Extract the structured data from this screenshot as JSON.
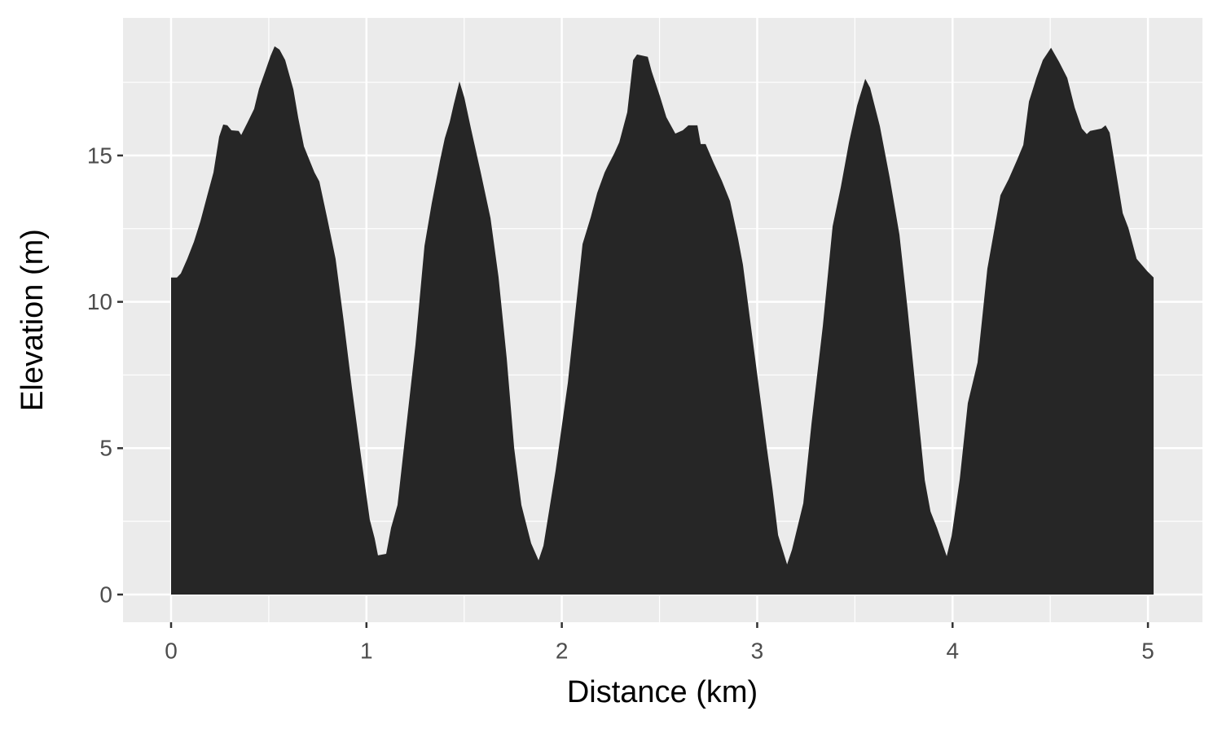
{
  "chart_data": {
    "type": "area",
    "x_label": "Distance (km)",
    "y_label": "Elevation (m)",
    "color": "#262626",
    "background": "#ebebeb",
    "grid": true,
    "xlim": [
      -0.246,
      5.279
    ],
    "ylim": [
      -0.946,
      19.7
    ],
    "xticks": [
      0,
      1,
      2,
      3,
      4,
      5
    ],
    "yticks": [
      0,
      5,
      10,
      15
    ],
    "xminorticks": [
      0.5,
      1.5,
      2.5,
      3.5,
      4.5
    ],
    "yminorticks": [
      2.5,
      7.5,
      12.5,
      17.5
    ],
    "x": [
      0,
      0.03,
      0.05,
      0.083,
      0.117,
      0.15,
      0.183,
      0.217,
      0.246,
      0.267,
      0.288,
      0.309,
      0.346,
      0.359,
      0.392,
      0.425,
      0.45,
      0.484,
      0.509,
      0.53,
      0.555,
      0.584,
      0.626,
      0.651,
      0.68,
      0.709,
      0.734,
      0.759,
      0.801,
      0.842,
      0.884,
      0.926,
      0.972,
      1.017,
      1.042,
      1.059,
      1.101,
      1.126,
      1.159,
      1.201,
      1.251,
      1.297,
      1.334,
      1.376,
      1.401,
      1.426,
      1.447,
      1.476,
      1.501,
      1.535,
      1.585,
      1.635,
      1.676,
      1.718,
      1.756,
      1.793,
      1.843,
      1.881,
      1.906,
      1.968,
      2.031,
      2.106,
      2.148,
      2.181,
      2.219,
      2.235,
      2.269,
      2.294,
      2.335,
      2.365,
      2.385,
      2.44,
      2.46,
      2.502,
      2.535,
      2.581,
      2.619,
      2.648,
      2.694,
      2.711,
      2.736,
      2.777,
      2.819,
      2.861,
      2.902,
      2.927,
      2.961,
      3.011,
      3.048,
      3.078,
      3.107,
      3.153,
      3.178,
      3.236,
      3.278,
      3.336,
      3.386,
      3.428,
      3.47,
      3.511,
      3.553,
      3.578,
      3.628,
      3.678,
      3.728,
      3.77,
      3.816,
      3.858,
      3.887,
      3.92,
      3.97,
      3.995,
      4.037,
      4.078,
      4.128,
      4.178,
      4.245,
      4.287,
      4.329,
      4.362,
      4.391,
      4.429,
      4.462,
      4.504,
      4.545,
      4.587,
      4.625,
      4.662,
      4.687,
      4.704,
      4.762,
      4.783,
      4.804,
      4.837,
      4.871,
      4.9,
      4.942,
      4.996,
      5.029
    ],
    "values": [
      10.83,
      10.83,
      10.97,
      11.47,
      12.05,
      12.75,
      13.58,
      14.42,
      15.64,
      16.06,
      16.03,
      15.86,
      15.84,
      15.7,
      16.14,
      16.59,
      17.28,
      17.92,
      18.4,
      18.73,
      18.62,
      18.26,
      17.26,
      16.28,
      15.31,
      14.83,
      14.42,
      14.11,
      12.8,
      11.47,
      9.32,
      7.04,
      4.73,
      2.56,
      1.92,
      1.34,
      1.39,
      2.28,
      3.06,
      5.57,
      8.54,
      11.91,
      13.36,
      14.81,
      15.59,
      16.14,
      16.75,
      17.53,
      16.98,
      15.92,
      14.42,
      12.86,
      10.85,
      8.07,
      5.01,
      3.06,
      1.75,
      1.17,
      1.67,
      4.23,
      7.24,
      11.97,
      12.89,
      13.72,
      14.42,
      14.64,
      15.08,
      15.45,
      16.48,
      18.26,
      18.45,
      18.37,
      17.87,
      17.03,
      16.31,
      15.75,
      15.86,
      16.03,
      16.03,
      15.39,
      15.39,
      14.75,
      14.14,
      13.44,
      12.16,
      11.27,
      9.52,
      6.96,
      5.07,
      3.62,
      2.03,
      1.03,
      1.53,
      3.12,
      5.84,
      9.18,
      12.58,
      13.92,
      15.45,
      16.7,
      17.62,
      17.31,
      16.0,
      14.25,
      12.3,
      9.74,
      6.68,
      3.9,
      2.84,
      2.28,
      1.31,
      2.0,
      3.95,
      6.54,
      7.93,
      11.13,
      13.64,
      14.19,
      14.83,
      15.36,
      16.84,
      17.65,
      18.26,
      18.68,
      18.2,
      17.65,
      16.64,
      15.92,
      15.73,
      15.84,
      15.92,
      16.03,
      15.78,
      14.42,
      13.03,
      12.52,
      11.47,
      11.05,
      10.83
    ]
  }
}
